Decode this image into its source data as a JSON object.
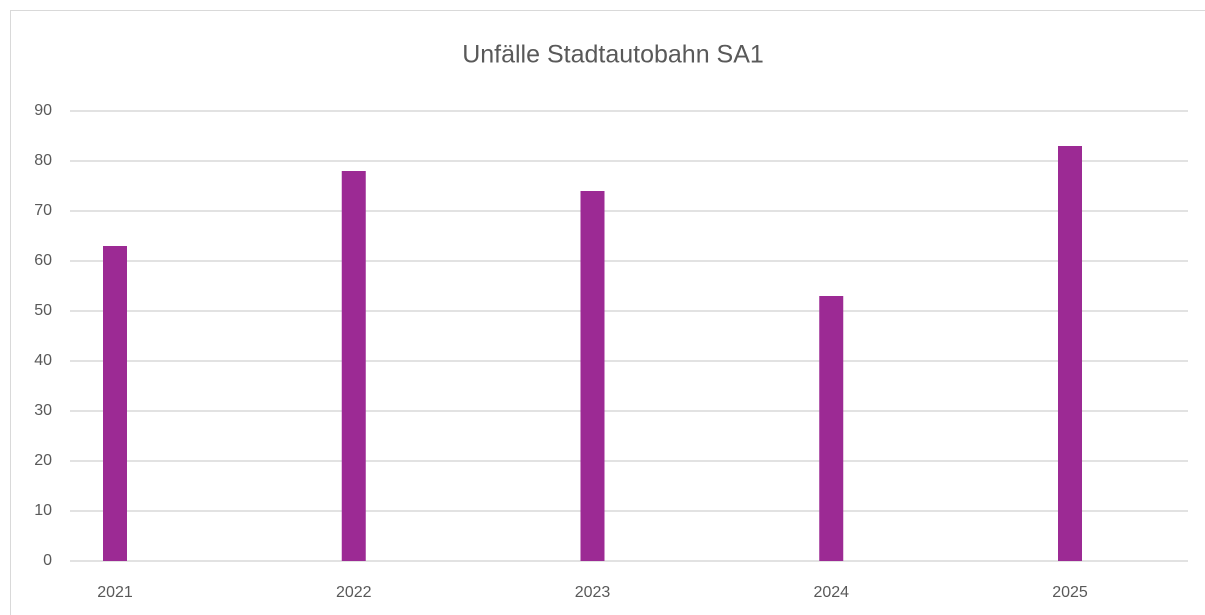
{
  "chart_data": {
    "type": "bar",
    "title": "Unfälle Stadtautobahn SA1",
    "categories": [
      "2021",
      "2022",
      "2023",
      "2024",
      "2025"
    ],
    "values": [
      63,
      78,
      74,
      53,
      83
    ],
    "color": "#9c2a94",
    "ylim": [
      0,
      90
    ],
    "yticks": [
      0,
      10,
      20,
      30,
      40,
      50,
      60,
      70,
      80,
      90
    ],
    "grid": true
  }
}
